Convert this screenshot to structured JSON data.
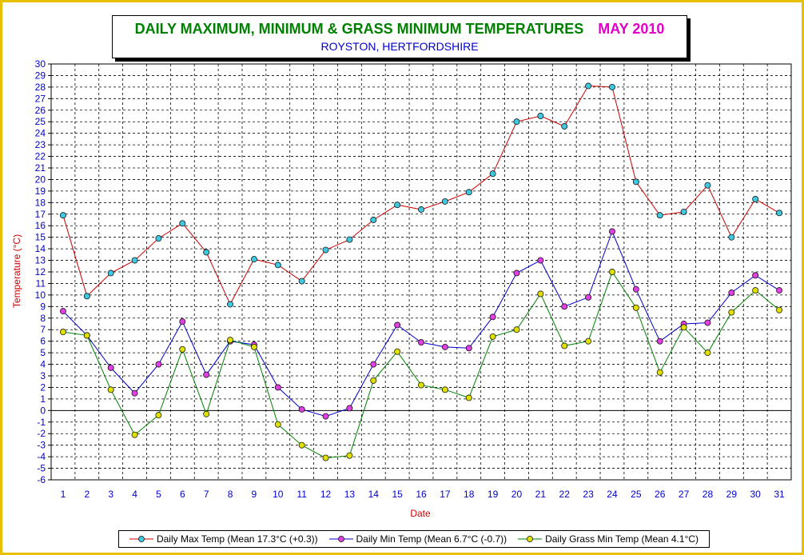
{
  "chart_data": {
    "type": "line",
    "title": "DAILY MAXIMUM, MINIMUM & GRASS MINIMUM TEMPERATURES",
    "title_month": "MAY 2010",
    "subtitle": "ROYSTON, HERTFORDSHIRE",
    "xlabel": "Date",
    "ylabel": "Temperature (°C)",
    "ylim": [
      -6,
      30
    ],
    "yticks": [
      -6,
      -5,
      -4,
      -3,
      -2,
      -1,
      0,
      1,
      2,
      3,
      4,
      5,
      6,
      7,
      8,
      9,
      10,
      11,
      12,
      13,
      14,
      15,
      16,
      17,
      18,
      19,
      20,
      21,
      22,
      23,
      24,
      25,
      26,
      27,
      28,
      29,
      30
    ],
    "x": [
      1,
      2,
      3,
      4,
      5,
      6,
      7,
      8,
      9,
      10,
      11,
      12,
      13,
      14,
      15,
      16,
      17,
      18,
      19,
      20,
      21,
      22,
      23,
      24,
      25,
      26,
      27,
      28,
      29,
      30,
      31
    ],
    "grid": true,
    "legend_position": "bottom",
    "series": [
      {
        "name": "Daily Max Temp (Mean 17.3°C (+0.3))",
        "line_color": "#cc0000",
        "marker_color": "#40c8e0",
        "values": [
          16.9,
          9.9,
          11.9,
          13.0,
          14.9,
          16.2,
          13.7,
          9.2,
          13.1,
          12.6,
          11.2,
          13.9,
          14.8,
          16.5,
          17.8,
          17.4,
          18.1,
          18.9,
          20.5,
          25.0,
          25.5,
          24.6,
          28.1,
          28.0,
          19.8,
          16.9,
          17.2,
          19.5,
          15.0,
          18.3,
          17.1
        ]
      },
      {
        "name": "Daily Min Temp (Mean 6.7°C (-0.7))",
        "line_color": "#0000cc",
        "marker_color": "#e040e0",
        "values": [
          8.6,
          6.5,
          3.7,
          1.5,
          4.0,
          7.7,
          3.1,
          6.0,
          5.7,
          2.0,
          0.1,
          -0.5,
          0.2,
          4.0,
          7.4,
          5.9,
          5.5,
          5.4,
          8.1,
          11.9,
          13.0,
          9.0,
          9.8,
          15.5,
          10.5,
          6.0,
          7.5,
          7.6,
          10.2,
          11.7,
          10.4
        ]
      },
      {
        "name": "Daily Grass Min Temp (Mean 4.1°C)",
        "line_color": "#008000",
        "marker_color": "#e0e000",
        "values": [
          6.8,
          6.5,
          1.8,
          -2.1,
          -0.4,
          5.3,
          -0.3,
          6.1,
          5.5,
          -1.2,
          -3.0,
          -4.1,
          -3.9,
          2.6,
          5.1,
          2.2,
          1.8,
          1.1,
          6.4,
          7.0,
          10.1,
          5.6,
          6.0,
          12.0,
          8.9,
          3.3,
          7.2,
          5.0,
          8.5,
          10.4,
          8.7
        ]
      }
    ]
  }
}
